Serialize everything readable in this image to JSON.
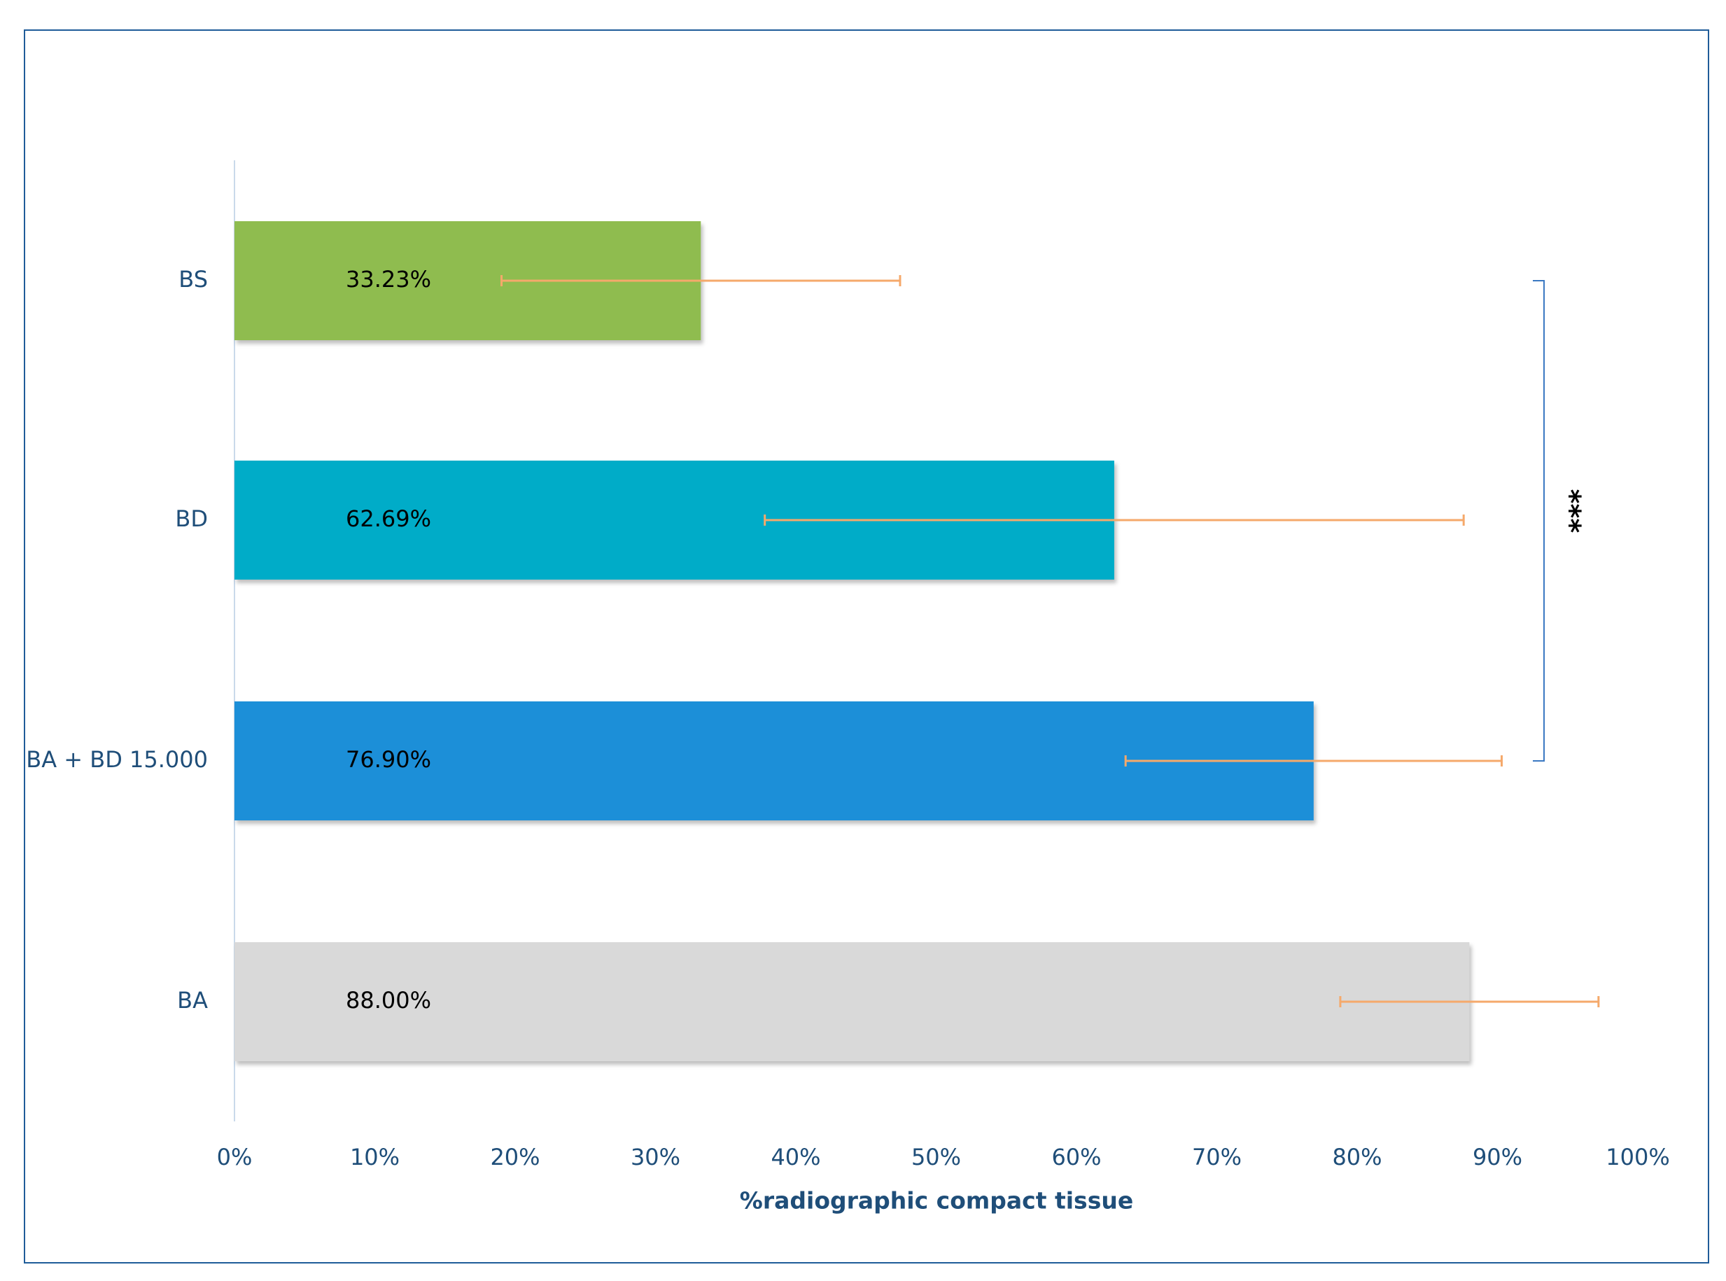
{
  "chart_data": {
    "type": "barh",
    "categories": [
      "BS",
      "BD",
      "BA + BD 15.000",
      "BA"
    ],
    "values": [
      33.23,
      62.69,
      76.9,
      88.0
    ],
    "value_labels": [
      "33.23%",
      "62.69%",
      "76.90%",
      "88.00%"
    ],
    "errors": [
      14.2,
      24.9,
      13.4,
      9.2
    ],
    "colors": [
      "#8fbc4f",
      "#00acc8",
      "#1f8fd8",
      "#d9d9d9"
    ],
    "error_color": "#f5a96b",
    "xlabel": "%radiographic compact tissue",
    "xlim": [
      0,
      100
    ],
    "xticks": [
      {
        "value": 0,
        "label": "0%"
      },
      {
        "value": 10,
        "label": "10%"
      },
      {
        "value": 20,
        "label": "20%"
      },
      {
        "value": 30,
        "label": "30%"
      },
      {
        "value": 40,
        "label": "40%"
      },
      {
        "value": 50,
        "label": "50%"
      },
      {
        "value": 60,
        "label": "60%"
      },
      {
        "value": 70,
        "label": "70%"
      },
      {
        "value": 80,
        "label": "80%"
      },
      {
        "value": 90,
        "label": "90%"
      },
      {
        "value": 100,
        "label": "100%"
      }
    ],
    "annotation": "***"
  }
}
